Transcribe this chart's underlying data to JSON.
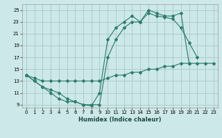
{
  "xlabel": "Humidex (Indice chaleur)",
  "background_color": "#cde8e8",
  "grid_color": "#aacccc",
  "line_color": "#2e7d6e",
  "xlim": [
    -0.5,
    23.5
  ],
  "ylim": [
    8.5,
    26.0
  ],
  "xticks": [
    0,
    1,
    2,
    3,
    4,
    5,
    6,
    7,
    8,
    9,
    10,
    11,
    12,
    13,
    14,
    15,
    16,
    17,
    18,
    19,
    20,
    21,
    22,
    23
  ],
  "yticks": [
    9,
    11,
    13,
    15,
    17,
    19,
    21,
    23,
    25
  ],
  "series": [
    {
      "x": [
        0,
        1,
        2,
        3,
        4,
        5,
        6,
        7,
        8,
        9,
        10,
        11,
        12,
        13,
        14,
        15,
        16,
        17,
        18,
        19,
        20
      ],
      "y": [
        14,
        13,
        12,
        11,
        10,
        9.5,
        9.5,
        9,
        8.8,
        11,
        20,
        22,
        23,
        24,
        23,
        25,
        24.5,
        24,
        24,
        24.5,
        16
      ]
    },
    {
      "x": [
        0,
        1,
        2,
        3,
        4,
        5,
        6,
        7,
        8,
        9,
        10,
        11,
        12,
        13,
        14,
        15,
        16,
        17,
        18,
        19,
        20,
        21
      ],
      "y": [
        14,
        13,
        12,
        11.5,
        11,
        10,
        9.5,
        9,
        9,
        9,
        17,
        20,
        22,
        23,
        23,
        24.5,
        24,
        23.8,
        23.5,
        22,
        19.5,
        17
      ]
    },
    {
      "x": [
        0,
        1,
        2,
        3,
        4,
        5,
        6,
        7,
        8,
        9,
        10,
        11,
        12,
        13,
        14,
        15,
        16,
        17,
        18,
        19,
        20,
        21,
        22,
        23
      ],
      "y": [
        14,
        13.5,
        13,
        13,
        13,
        13,
        13,
        13,
        13,
        13,
        13.5,
        14,
        14,
        14.5,
        14.5,
        15,
        15,
        15.5,
        15.5,
        16,
        16,
        16,
        16,
        16
      ]
    }
  ],
  "xlabel_fontsize": 6.0,
  "tick_fontsize": 5.0
}
